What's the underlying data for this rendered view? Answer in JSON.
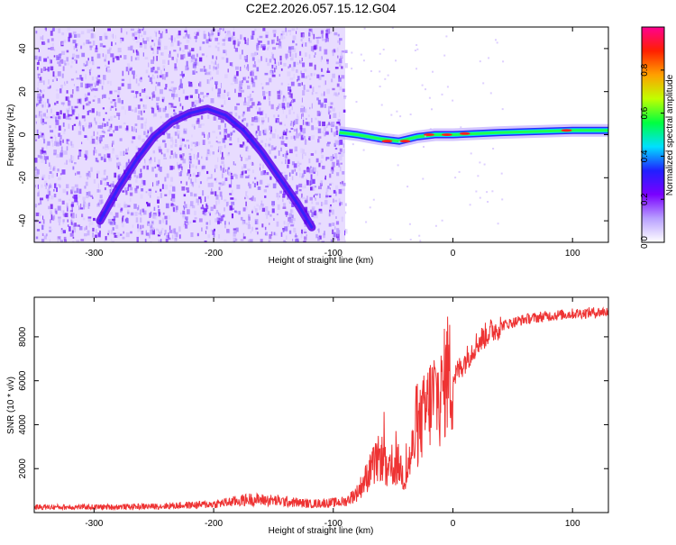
{
  "page_title": "C2E2.2026.057.15.12.G04",
  "chart_data": [
    {
      "type": "heatmap",
      "title": "C2E2.2026.057.15.12.G04",
      "xlabel": "Height of straight line (km)",
      "ylabel": "Frequency (Hz)",
      "xlim": [
        -350,
        130
      ],
      "ylim": [
        -50,
        50
      ],
      "xticks": [
        -300,
        -200,
        -100,
        0,
        100
      ],
      "yticks": [
        -40,
        -20,
        0,
        20,
        40
      ],
      "colorbar": {
        "label": "Normalized spectral amplitude",
        "range": [
          0,
          1
        ],
        "ticks": [
          0.0,
          0.2,
          0.4,
          0.6,
          0.8
        ],
        "colors": [
          "#ffffff",
          "#b8a0ff",
          "#7a00ff",
          "#2020ff",
          "#00e0ff",
          "#00ff40",
          "#c0ff00",
          "#ffa000",
          "#ff2000",
          "#ff0090"
        ]
      },
      "features": {
        "noise_region_x": [
          -350,
          -90
        ],
        "tone_ridge": [
          {
            "x": -295,
            "y": -40
          },
          {
            "x": -280,
            "y": -25
          },
          {
            "x": -265,
            "y": -12
          },
          {
            "x": -250,
            "y": -1
          },
          {
            "x": -235,
            "y": 6
          },
          {
            "x": -220,
            "y": 10
          },
          {
            "x": -205,
            "y": 12
          },
          {
            "x": -190,
            "y": 9
          },
          {
            "x": -175,
            "y": 2
          },
          {
            "x": -160,
            "y": -8
          },
          {
            "x": -145,
            "y": -20
          },
          {
            "x": -130,
            "y": -32
          },
          {
            "x": -118,
            "y": -43
          }
        ],
        "carrier_line": [
          {
            "x": -95,
            "y": 1
          },
          {
            "x": -80,
            "y": 0
          },
          {
            "x": -60,
            "y": -2
          },
          {
            "x": -45,
            "y": -3
          },
          {
            "x": -30,
            "y": -1
          },
          {
            "x": -15,
            "y": 0
          },
          {
            "x": 0,
            "y": 0
          },
          {
            "x": 40,
            "y": 1
          },
          {
            "x": 100,
            "y": 2
          },
          {
            "x": 130,
            "y": 2
          }
        ]
      }
    },
    {
      "type": "line",
      "title": "",
      "xlabel": "Height of straight line (km)",
      "ylabel": "SNR (10 * v/v)",
      "xlim": [
        -350,
        130
      ],
      "ylim": [
        0,
        9800
      ],
      "xticks": [
        -300,
        -200,
        -100,
        0,
        100
      ],
      "yticks": [
        2000,
        4000,
        6000,
        8000
      ],
      "color": "#ee3333",
      "series": [
        {
          "x": [
            -350,
            -300,
            -250,
            -200,
            -170,
            -150,
            -120,
            -100,
            -90,
            -80,
            -70,
            -60,
            -55,
            -50,
            -45,
            -40,
            -35,
            -30,
            -25,
            -20,
            -15,
            -10,
            -5,
            0,
            10,
            20,
            30,
            40,
            60,
            80,
            100,
            130
          ],
          "values": [
            250,
            250,
            280,
            380,
            600,
            550,
            400,
            450,
            500,
            900,
            1800,
            2600,
            1700,
            2000,
            2200,
            1500,
            2600,
            3600,
            4300,
            4900,
            5400,
            5200,
            6300,
            6100,
            6900,
            7700,
            8200,
            8500,
            8800,
            8950,
            9050,
            9150
          ]
        }
      ]
    }
  ]
}
